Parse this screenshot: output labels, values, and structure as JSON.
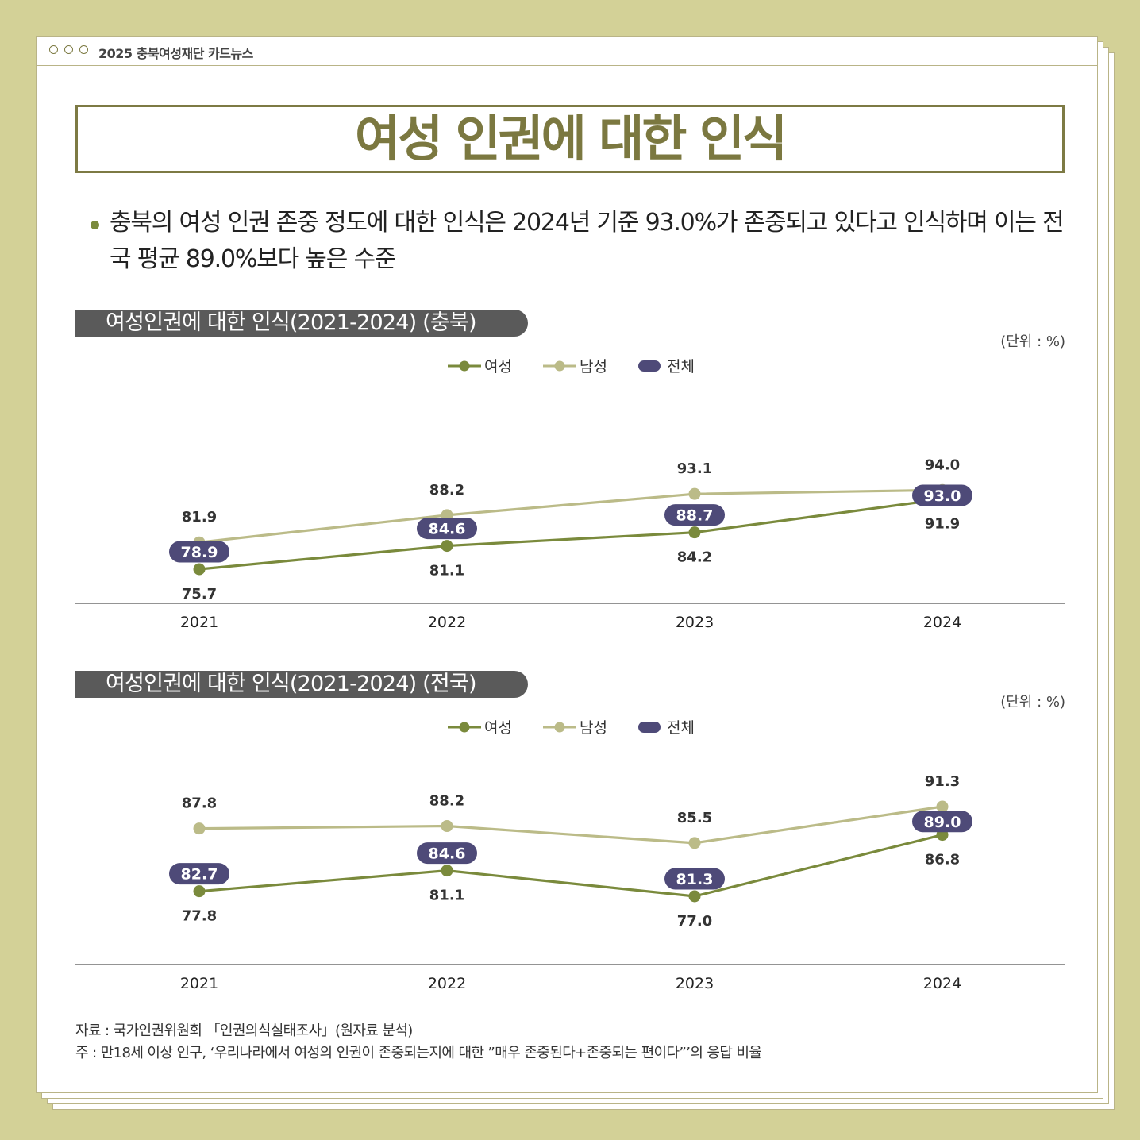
{
  "header": {
    "title": "2025 충북여성재단 카드뉴스"
  },
  "title": "여성 인권에 대한 인식",
  "summary": "충북의 여성 인권 존중 정도에 대한 인식은 2024년 기준 93.0%가 존중되고 있다고 인식하며 이는 전국 평균 89.0%보다 높은 수준",
  "colors": {
    "female": "#7a8a3c",
    "male": "#bbbb88",
    "total": "#4e4a78",
    "frame": "#b9b487",
    "background": "#d3d197"
  },
  "legend": {
    "female": "여성",
    "male": "남성",
    "total": "전체"
  },
  "chart_data": [
    {
      "type": "line",
      "title": "여성인권에 대한 인식(2021-2024) (충북)",
      "unit": "(단위 : %)",
      "categories": [
        "2021",
        "2022",
        "2023",
        "2024"
      ],
      "series": [
        {
          "name": "여성",
          "values": [
            75.7,
            81.1,
            84.2,
            91.9
          ]
        },
        {
          "name": "남성",
          "values": [
            81.9,
            88.2,
            93.1,
            94.0
          ]
        },
        {
          "name": "전체",
          "values": [
            78.9,
            84.6,
            88.7,
            93.0
          ]
        }
      ],
      "legend_position": "top-center",
      "grid": false
    },
    {
      "type": "line",
      "title": "여성인권에 대한 인식(2021-2024) (전국)",
      "unit": "(단위 : %)",
      "categories": [
        "2021",
        "2022",
        "2023",
        "2024"
      ],
      "series": [
        {
          "name": "여성",
          "values": [
            77.8,
            81.1,
            77.0,
            86.8
          ]
        },
        {
          "name": "남성",
          "values": [
            87.8,
            88.2,
            85.5,
            91.3
          ]
        },
        {
          "name": "전체",
          "values": [
            82.7,
            84.6,
            81.3,
            89.0
          ]
        }
      ],
      "legend_position": "top-center",
      "grid": false
    }
  ],
  "footnotes": {
    "source": "자료 : 국가인권위원회 「인권의식실태조사」(원자료 분석)",
    "note": "주 : 만18세 이상 인구, ‘우리나라에서 여성의 인권이 존중되는지에 대한 ”매우 존중된다+존중되는 편이다”’의 응답 비율"
  }
}
